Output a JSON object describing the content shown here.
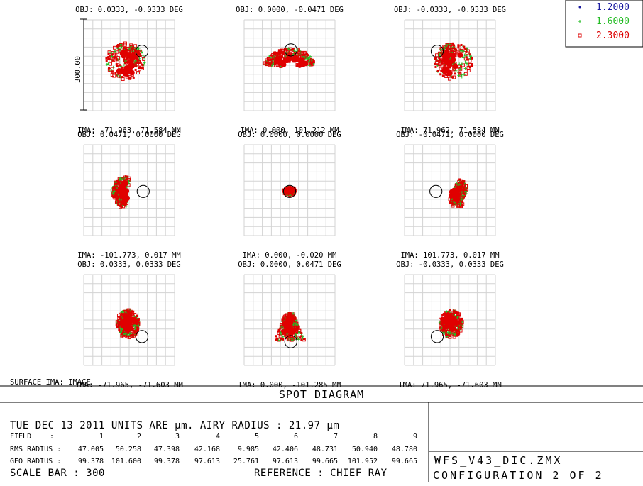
{
  "chart_data": {
    "type": "scatter",
    "title": "SPOT DIAGRAM",
    "scale_bar_label": "300.00",
    "surface_label": "SURFACE IMA: IMAGE",
    "legend_placement": "top-right",
    "legend": [
      {
        "label": "1.2000",
        "color": "#1a1aa0",
        "marker": "dot"
      },
      {
        "label": "1.6000",
        "color": "#22bb22",
        "marker": "cross"
      },
      {
        "label": "2.3000",
        "color": "#dd0000",
        "marker": "square"
      }
    ],
    "fields": [
      {
        "obj": "OBJ: 0.0333, -0.0333 DEG",
        "ima": "IMA: -71.963, 71.584 MM",
        "spot": "tri-left",
        "airy_dx": 0.5,
        "airy_dy": 0.55
      },
      {
        "obj": "OBJ: 0.0000, -0.0471 DEG",
        "ima": "IMA: 0.000, 101.212 MM",
        "spot": "fan-top",
        "airy_dx": 0.05,
        "airy_dy": 0.6
      },
      {
        "obj": "OBJ: -0.0333, -0.0333 DEG",
        "ima": "IMA: 71.962, 71.584 MM",
        "spot": "tri-right",
        "airy_dx": -0.5,
        "airy_dy": 0.55
      },
      {
        "obj": "OBJ: 0.0471, 0.0000 DEG",
        "ima": "IMA: -101.773, 0.017 MM",
        "spot": "side-left",
        "airy_dx": 0.55,
        "airy_dy": -0.05
      },
      {
        "obj": "OBJ: 0.0000, 0.0000 DEG",
        "ima": "IMA: 0.000, -0.020 MM",
        "spot": "center",
        "airy_dx": 0.0,
        "airy_dy": -0.05
      },
      {
        "obj": "OBJ: -0.0471, 0.0000 DEG",
        "ima": "IMA: 101.773, 0.017 MM",
        "spot": "side-right",
        "airy_dx": -0.55,
        "airy_dy": -0.05
      },
      {
        "obj": "OBJ: 0.0333, 0.0333 DEG",
        "ima": "IMA: -71.965, -71.603 MM",
        "spot": "bot-left",
        "airy_dx": 0.5,
        "airy_dy": -0.65
      },
      {
        "obj": "OBJ: 0.0000, 0.0471 DEG",
        "ima": "IMA: 0.000, -101.285 MM",
        "spot": "drop",
        "airy_dx": 0.05,
        "airy_dy": -0.85
      },
      {
        "obj": "OBJ: -0.0333, 0.0333 DEG",
        "ima": "IMA: 71.965, -71.603 MM",
        "spot": "bot-right",
        "airy_dx": -0.5,
        "airy_dy": -0.65
      }
    ],
    "info": {
      "date_line": "TUE DEC 13 2011   UNITS ARE µm.   AIRY RADIUS : 21.97 µm",
      "field_label": "FIELD",
      "field_sep": ":",
      "rms_label": "RMS RADIUS :",
      "geo_label": "GEO RADIUS :",
      "field_numbers": [
        "1",
        "2",
        "3",
        "4",
        "5",
        "6",
        "7",
        "8",
        "9"
      ],
      "rms_radius": [
        "47.005",
        "50.258",
        "47.398",
        "42.168",
        "9.985",
        "42.406",
        "48.731",
        "50.940",
        "48.780"
      ],
      "geo_radius": [
        "99.378",
        "101.600",
        "99.378",
        "97.613",
        "25.761",
        "97.613",
        "99.665",
        "101.952",
        "99.665"
      ],
      "scale_bar": "SCALE BAR   :     300",
      "reference": "REFERENCE   : CHIEF RAY"
    },
    "file_name": "WFS_V43_DIC.ZMX",
    "configuration": "CONFIGURATION 2 OF 2"
  }
}
